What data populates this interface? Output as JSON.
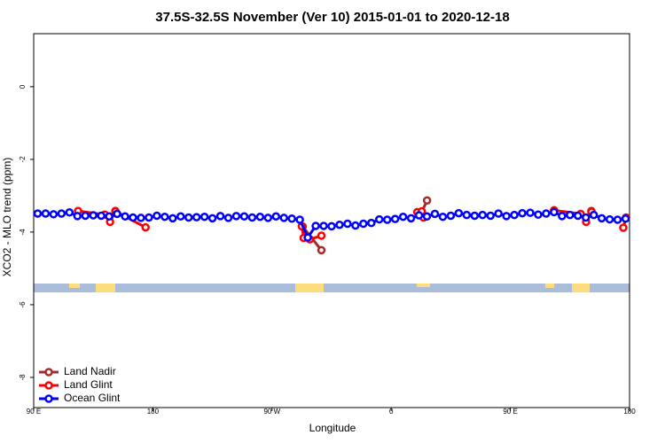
{
  "chart_data": {
    "type": "line",
    "title": "37.5S-32.5S November (Ver 10)   2015-01-01 to 2020-12-18",
    "x_label": "Longitude",
    "y_label": "XCO2 - MLO trend (ppm)",
    "xlim": [
      90,
      540
    ],
    "ylim": [
      -8.83,
      1.46
    ],
    "xticks": [
      {
        "value": 90,
        "label": "90 E"
      },
      180,
      {
        "value": 270,
        "label": "90 W"
      },
      {
        "value": 360,
        "label": "0"
      },
      {
        "value": 450,
        "label": "90 E"
      },
      {
        "value": 540,
        "label": "180"
      }
    ],
    "yticks": [
      0,
      -2,
      -4,
      -6,
      -8
    ],
    "legend": "bottom-left",
    "series": [
      {
        "name": "Land Nadir",
        "color": "#a52a2a",
        "x": [
          151.7,
          null,
          293.2,
          307.3,
          null,
          383.1,
          387.1,
          null,
          511.2
        ],
        "values": [
          -3.42,
          null,
          -3.85,
          -4.5,
          null,
          -3.45,
          -3.13,
          null,
          -3.42
        ]
      },
      {
        "name": "Land Glint",
        "color": "#ff0000",
        "x": [
          123.5,
          143.7,
          147.7,
          151.7,
          174.5,
          null,
          292.5,
          293.9,
          298.6,
          307.3,
          null,
          379.7,
          383.1,
          384.4,
          null,
          483.0,
          503.1,
          507.2,
          511.2,
          null,
          535.3,
          537.4
        ],
        "values": [
          -3.42,
          -3.52,
          -3.72,
          -3.43,
          -3.87,
          null,
          -3.84,
          -4.16,
          -4.2,
          -4.1,
          null,
          -3.45,
          -3.43,
          -3.6,
          null,
          -3.4,
          -3.5,
          -3.72,
          -3.44,
          null,
          -3.88,
          -3.6
        ]
      },
      {
        "name": "Ocean Glint",
        "color": "#0000ff",
        "x": [
          93,
          99,
          105,
          111,
          117,
          123,
          129,
          135,
          141,
          147,
          153,
          159,
          165,
          171,
          177,
          183,
          189,
          195,
          201,
          207,
          213,
          219,
          225,
          231,
          237,
          243,
          249,
          255,
          261,
          267,
          273,
          279,
          285,
          291,
          297,
          303,
          309,
          315,
          321,
          327,
          333,
          339,
          345,
          351,
          357,
          363,
          369,
          375,
          381,
          387,
          393,
          399,
          405,
          411,
          417,
          423,
          429,
          435,
          441,
          447,
          453,
          459,
          465,
          471,
          477,
          483,
          489,
          495,
          501,
          507,
          513,
          519,
          525,
          531,
          537
        ],
        "values": [
          -3.49,
          -3.49,
          -3.51,
          -3.49,
          -3.46,
          -3.56,
          -3.55,
          -3.54,
          -3.55,
          -3.57,
          -3.5,
          -3.57,
          -3.6,
          -3.61,
          -3.6,
          -3.55,
          -3.58,
          -3.62,
          -3.57,
          -3.6,
          -3.59,
          -3.58,
          -3.62,
          -3.56,
          -3.61,
          -3.56,
          -3.57,
          -3.6,
          -3.58,
          -3.61,
          -3.57,
          -3.61,
          -3.63,
          -3.66,
          -4.15,
          -3.83,
          -3.83,
          -3.84,
          -3.8,
          -3.77,
          -3.82,
          -3.77,
          -3.75,
          -3.65,
          -3.66,
          -3.64,
          -3.58,
          -3.62,
          -3.54,
          -3.57,
          -3.5,
          -3.58,
          -3.55,
          -3.48,
          -3.53,
          -3.55,
          -3.53,
          -3.55,
          -3.49,
          -3.56,
          -3.53,
          -3.48,
          -3.47,
          -3.52,
          -3.49,
          -3.45,
          -3.56,
          -3.53,
          -3.55,
          -3.6,
          -3.53,
          -3.62,
          -3.65,
          -3.66,
          -3.63
        ]
      }
    ]
  }
}
